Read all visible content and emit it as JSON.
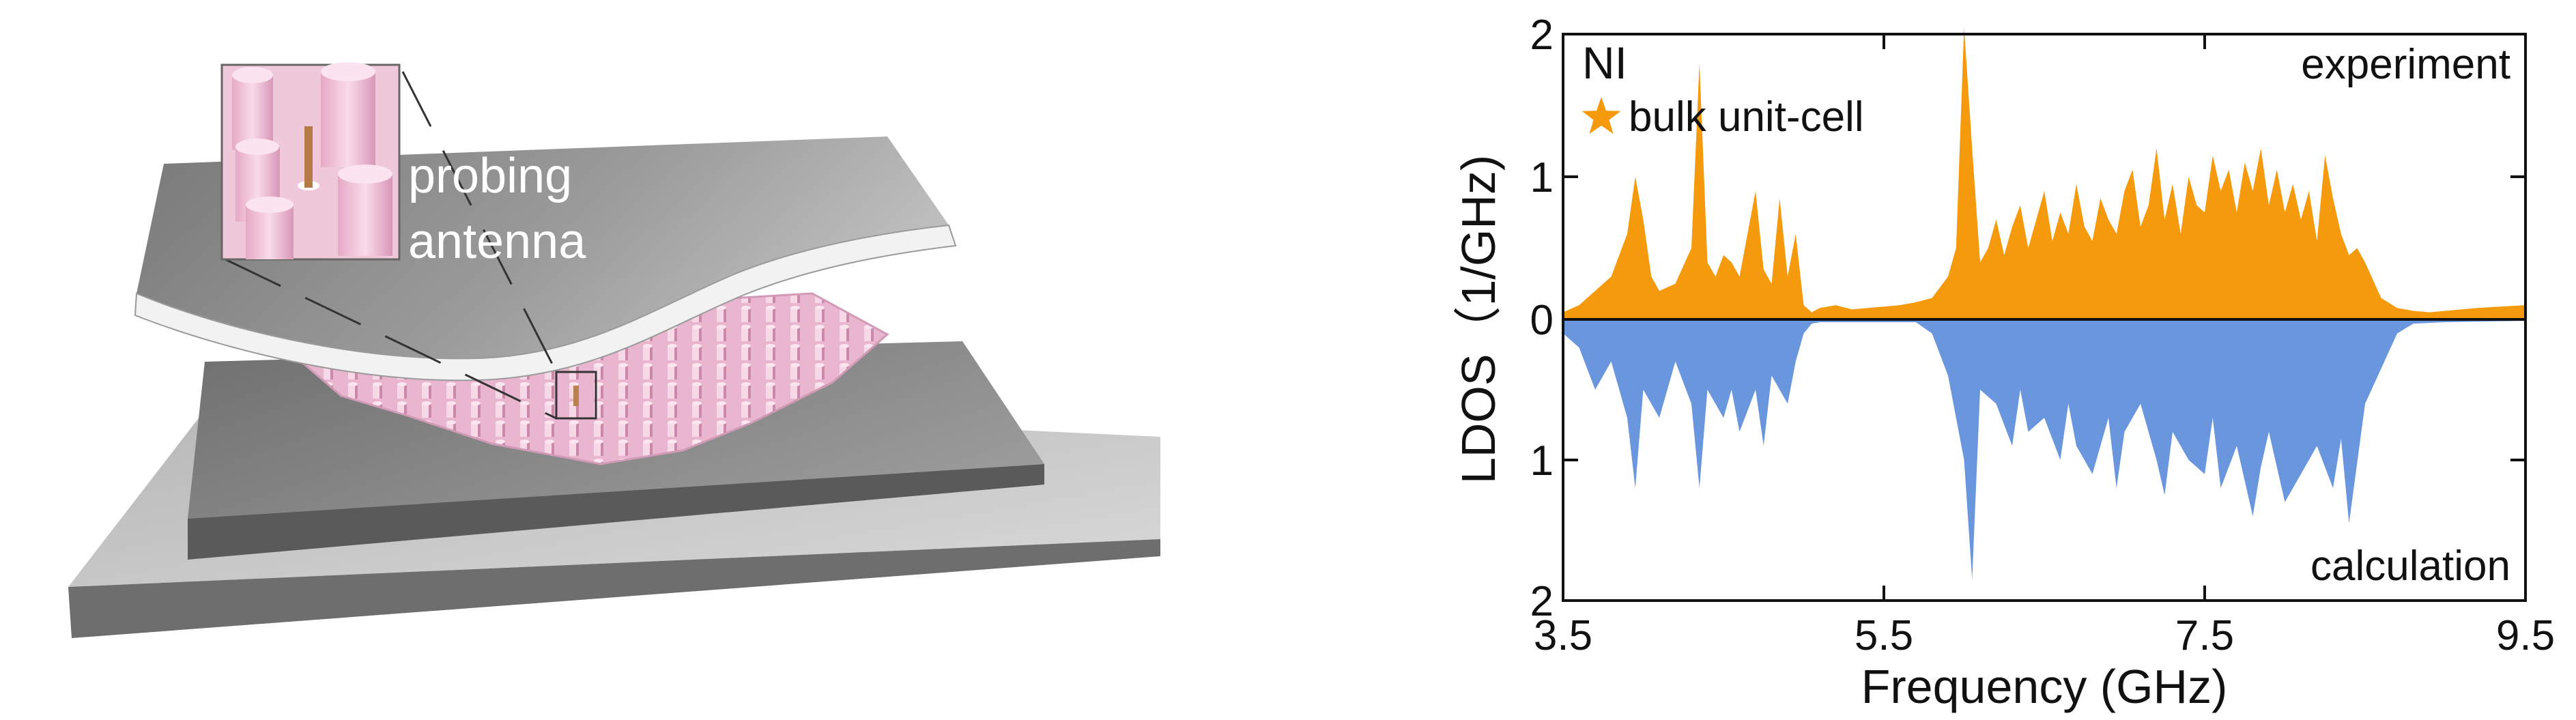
{
  "illustration": {
    "label_line1": "probing",
    "label_line2": "antenna"
  },
  "colors": {
    "experiment": "#F59A0C",
    "calculation": "#6A96DE",
    "ni_text": "#1F6BB0",
    "star": "#F59A0C",
    "metal": "#8A8A8A",
    "pillar": "#F2C6DA"
  },
  "chart_data": {
    "type": "area",
    "xlabel": "Frequency (GHz)",
    "ylabel": "LDOS（1/GHz)",
    "xlim": [
      3.5,
      9.5
    ],
    "ylim_top": [
      0,
      2
    ],
    "ylim_bottom": [
      0,
      2
    ],
    "x_ticks": [
      "3.5",
      "5.5",
      "7.5",
      "9.5"
    ],
    "y_ticks_top": [
      "2",
      "1",
      "0"
    ],
    "y_ticks_bottom": [
      "1",
      "2"
    ],
    "legend": {
      "ni": "NI",
      "bulk": "bulk unit-cell"
    },
    "annotations": {
      "top": "experiment",
      "bottom": "calculation"
    },
    "series": [
      {
        "key": "experiment",
        "x": [
          3.5,
          3.6,
          3.7,
          3.8,
          3.9,
          3.95,
          4.0,
          4.05,
          4.1,
          4.2,
          4.3,
          4.35,
          4.4,
          4.45,
          4.5,
          4.55,
          4.6,
          4.7,
          4.75,
          4.8,
          4.85,
          4.9,
          4.95,
          5.0,
          5.05,
          5.1,
          5.2,
          5.3,
          5.4,
          5.5,
          5.6,
          5.7,
          5.8,
          5.9,
          5.95,
          6.0,
          6.05,
          6.1,
          6.15,
          6.2,
          6.25,
          6.3,
          6.35,
          6.4,
          6.45,
          6.5,
          6.55,
          6.6,
          6.65,
          6.7,
          6.75,
          6.8,
          6.85,
          6.9,
          6.95,
          7.0,
          7.05,
          7.1,
          7.15,
          7.2,
          7.25,
          7.3,
          7.35,
          7.4,
          7.45,
          7.5,
          7.55,
          7.6,
          7.65,
          7.7,
          7.75,
          7.8,
          7.85,
          7.9,
          7.95,
          8.0,
          8.05,
          8.1,
          8.15,
          8.2,
          8.25,
          8.3,
          8.35,
          8.4,
          8.45,
          8.5,
          8.6,
          8.7,
          8.8,
          8.9,
          9.0,
          9.2,
          9.5
        ],
        "y": [
          0.05,
          0.1,
          0.2,
          0.3,
          0.6,
          1.0,
          0.7,
          0.3,
          0.2,
          0.25,
          0.5,
          1.8,
          0.4,
          0.3,
          0.45,
          0.4,
          0.3,
          0.9,
          0.35,
          0.25,
          0.85,
          0.3,
          0.6,
          0.1,
          0.05,
          0.08,
          0.1,
          0.07,
          0.08,
          0.09,
          0.1,
          0.12,
          0.15,
          0.3,
          0.5,
          2.05,
          1.2,
          0.4,
          0.5,
          0.7,
          0.45,
          0.65,
          0.8,
          0.5,
          0.7,
          0.9,
          0.55,
          0.75,
          0.6,
          0.95,
          0.65,
          0.55,
          0.85,
          0.7,
          0.6,
          0.9,
          1.05,
          0.65,
          0.8,
          1.2,
          0.7,
          0.95,
          0.6,
          1.0,
          0.8,
          0.75,
          1.15,
          0.9,
          1.05,
          0.75,
          1.1,
          0.9,
          1.2,
          0.8,
          1.05,
          0.75,
          0.95,
          0.7,
          0.9,
          0.55,
          1.15,
          0.85,
          0.6,
          0.45,
          0.5,
          0.4,
          0.15,
          0.08,
          0.06,
          0.05,
          0.06,
          0.08,
          0.1
        ]
      },
      {
        "key": "calculation",
        "x": [
          3.5,
          3.6,
          3.7,
          3.8,
          3.9,
          3.95,
          4.0,
          4.1,
          4.2,
          4.3,
          4.35,
          4.4,
          4.5,
          4.55,
          4.6,
          4.7,
          4.75,
          4.8,
          4.9,
          4.95,
          5.0,
          5.05,
          5.1,
          5.3,
          5.5,
          5.7,
          5.8,
          5.9,
          6.0,
          6.05,
          6.1,
          6.2,
          6.3,
          6.35,
          6.4,
          6.5,
          6.6,
          6.65,
          6.7,
          6.8,
          6.9,
          6.95,
          7.0,
          7.1,
          7.2,
          7.25,
          7.3,
          7.4,
          7.5,
          7.55,
          7.6,
          7.7,
          7.8,
          7.85,
          7.9,
          8.0,
          8.1,
          8.2,
          8.3,
          8.35,
          8.4,
          8.5,
          8.6,
          8.7,
          8.8,
          9.0,
          9.5
        ],
        "y": [
          0.1,
          0.2,
          0.5,
          0.3,
          0.7,
          1.2,
          0.5,
          0.7,
          0.3,
          0.6,
          1.2,
          0.5,
          0.7,
          0.5,
          0.8,
          0.5,
          0.9,
          0.4,
          0.6,
          0.3,
          0.1,
          0.03,
          0.02,
          0.02,
          0.02,
          0.02,
          0.1,
          0.4,
          1.0,
          1.85,
          0.5,
          0.6,
          0.9,
          0.5,
          0.8,
          0.7,
          1.0,
          0.6,
          0.9,
          1.1,
          0.7,
          1.2,
          0.8,
          0.6,
          1.0,
          1.25,
          0.8,
          1.0,
          1.1,
          0.7,
          1.2,
          0.9,
          1.4,
          1.05,
          0.8,
          1.3,
          1.1,
          0.9,
          1.2,
          0.85,
          1.45,
          0.6,
          0.35,
          0.1,
          0.03,
          0.02,
          0.01
        ]
      }
    ]
  }
}
